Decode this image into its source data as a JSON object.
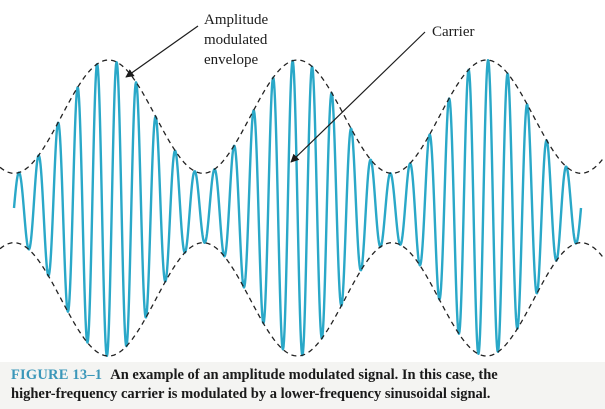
{
  "figure": {
    "labels": {
      "envelope_line1": "Amplitude",
      "envelope_line2": "modulated",
      "envelope_line3": "envelope",
      "carrier": "Carrier"
    },
    "caption": {
      "figure_number": "FIGURE 13–1",
      "text_line1": "An example of an amplitude modulated signal. In this case, the",
      "text_line2": "higher-frequency carrier is modulated by a lower-frequency sinusoidal signal."
    }
  },
  "colors": {
    "carrier_wave": "#2aa8c8",
    "envelope": "#222222",
    "figure_number": "#3b97b9",
    "caption_text": "#1a1a1a"
  },
  "signal": {
    "carrier_cycles_shown": 29,
    "modulation_cycles_shown": 3,
    "modulation_index": 0.62
  }
}
